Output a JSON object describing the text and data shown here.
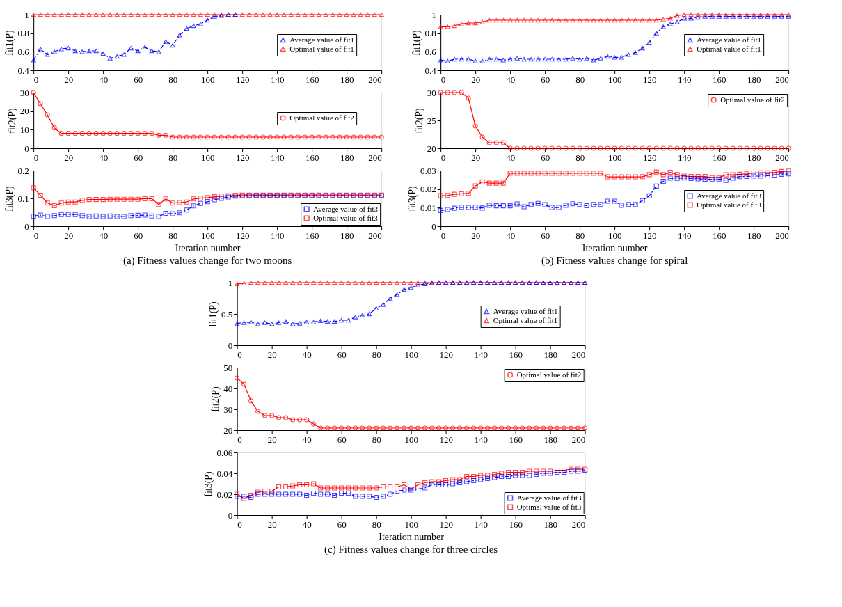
{
  "chart_data": [
    {
      "type": "line",
      "ylabel": "fit1(P)",
      "x": [
        0,
        4,
        8,
        12,
        16,
        20,
        24,
        28,
        32,
        36,
        40,
        44,
        48,
        52,
        56,
        60,
        64,
        68,
        72,
        76,
        80,
        84,
        88,
        92,
        96,
        100,
        104,
        108,
        112,
        116,
        120,
        124,
        128,
        132,
        136,
        140,
        144,
        148,
        152,
        156,
        160,
        164,
        168,
        172,
        176,
        180,
        184,
        188,
        192,
        196,
        200
      ],
      "xlim": [
        0,
        200
      ],
      "xticks": [
        0,
        20,
        40,
        60,
        80,
        100,
        120,
        140,
        160,
        180,
        200
      ],
      "ylim": [
        0.4,
        1
      ],
      "yticks": [
        0.4,
        0.6,
        0.8,
        1
      ],
      "legend": "right",
      "grid": false,
      "series": [
        {
          "name": "Average value of fit1",
          "color": "#0000ff",
          "marker": "triangle",
          "line_style": "dashed",
          "values": [
            0.51,
            0.63,
            0.57,
            0.6,
            0.63,
            0.64,
            0.61,
            0.6,
            0.61,
            0.61,
            0.58,
            0.53,
            0.55,
            0.57,
            0.64,
            0.61,
            0.65,
            0.61,
            0.6,
            0.71,
            0.67,
            0.78,
            0.85,
            0.88,
            0.9,
            0.94,
            0.98,
            0.99,
            1,
            1,
            null,
            null,
            null,
            null,
            null,
            null,
            null,
            null,
            null,
            null,
            null,
            null,
            null,
            null,
            null,
            null,
            null,
            null,
            null,
            null,
            null
          ]
        },
        {
          "name": "Optimal value of fit1",
          "color": "#ff0000",
          "marker": "triangle",
          "line_style": "solid",
          "values": [
            1,
            1,
            1,
            1,
            1,
            1,
            1,
            1,
            1,
            1,
            1,
            1,
            1,
            1,
            1,
            1,
            1,
            1,
            1,
            1,
            1,
            1,
            1,
            1,
            1,
            1,
            1,
            1,
            1,
            1,
            1,
            1,
            1,
            1,
            1,
            1,
            1,
            1,
            1,
            1,
            1,
            1,
            1,
            1,
            1,
            1,
            1,
            1,
            1,
            1,
            1
          ]
        }
      ]
    },
    {
      "type": "line",
      "ylabel": "fit2(P)",
      "x": [
        0,
        4,
        8,
        12,
        16,
        20,
        24,
        28,
        32,
        36,
        40,
        44,
        48,
        52,
        56,
        60,
        64,
        68,
        72,
        76,
        80,
        84,
        88,
        92,
        96,
        100,
        104,
        108,
        112,
        116,
        120,
        124,
        128,
        132,
        136,
        140,
        144,
        148,
        152,
        156,
        160,
        164,
        168,
        172,
        176,
        180,
        184,
        188,
        192,
        196,
        200
      ],
      "xlim": [
        0,
        200
      ],
      "xticks": [
        0,
        20,
        40,
        60,
        80,
        100,
        120,
        140,
        160,
        180,
        200
      ],
      "ylim": [
        0,
        30
      ],
      "yticks": [
        0,
        10,
        20,
        30
      ],
      "legend": "right",
      "grid": false,
      "series": [
        {
          "name": "Optimal value of fit2",
          "color": "#ff0000",
          "marker": "circle",
          "line_style": "solid",
          "values": [
            30,
            24,
            18,
            11,
            8,
            8,
            8,
            8,
            8,
            8,
            8,
            8,
            8,
            8,
            8,
            8,
            8,
            8,
            7,
            7,
            6,
            6,
            6,
            6,
            6,
            6,
            6,
            6,
            6,
            6,
            6,
            6,
            6,
            6,
            6,
            6,
            6,
            6,
            6,
            6,
            6,
            6,
            6,
            6,
            6,
            6,
            6,
            6,
            6,
            6,
            6
          ]
        }
      ]
    },
    {
      "type": "line",
      "ylabel": "fit3(P)",
      "xlabel": "Iteration number",
      "annotations": [
        "(a) Fitness values change for two moons"
      ],
      "x": [
        0,
        4,
        8,
        12,
        16,
        20,
        24,
        28,
        32,
        36,
        40,
        44,
        48,
        52,
        56,
        60,
        64,
        68,
        72,
        76,
        80,
        84,
        88,
        92,
        96,
        100,
        104,
        108,
        112,
        116,
        120,
        124,
        128,
        132,
        136,
        140,
        144,
        148,
        152,
        156,
        160,
        164,
        168,
        172,
        176,
        180,
        184,
        188,
        192,
        196,
        200
      ],
      "xlim": [
        0,
        200
      ],
      "xticks": [
        0,
        20,
        40,
        60,
        80,
        100,
        120,
        140,
        160,
        180,
        200
      ],
      "ylim": [
        0,
        0.2
      ],
      "yticks": [
        0,
        0.1,
        0.2
      ],
      "legend": "bottom right",
      "grid": false,
      "series": [
        {
          "name": "Average value of fit3",
          "color": "#0000ff",
          "marker": "square",
          "line_style": "dashed",
          "values": [
            0.036,
            0.04,
            0.035,
            0.038,
            0.042,
            0.042,
            0.042,
            0.038,
            0.035,
            0.037,
            0.035,
            0.037,
            0.035,
            0.035,
            0.038,
            0.039,
            0.04,
            0.037,
            0.035,
            0.046,
            0.045,
            0.048,
            0.058,
            0.073,
            0.082,
            0.088,
            0.095,
            0.1,
            0.105,
            0.108,
            0.109,
            0.11,
            0.11,
            0.11,
            0.11,
            0.11,
            0.11,
            0.11,
            0.11,
            0.11,
            0.11,
            0.11,
            0.11,
            0.11,
            0.11,
            0.11,
            0.11,
            0.11,
            0.11,
            0.11,
            0.11
          ]
        },
        {
          "name": "Optimal value of fit3",
          "color": "#ff0000",
          "marker": "square",
          "line_style": "solid",
          "values": [
            0.138,
            0.111,
            0.083,
            0.074,
            0.083,
            0.087,
            0.087,
            0.093,
            0.096,
            0.096,
            0.096,
            0.097,
            0.097,
            0.097,
            0.097,
            0.097,
            0.099,
            0.099,
            0.078,
            0.098,
            0.083,
            0.085,
            0.087,
            0.098,
            0.101,
            0.103,
            0.106,
            0.108,
            0.109,
            0.111,
            0.112,
            0.112,
            0.112,
            0.112,
            0.112,
            0.112,
            0.112,
            0.112,
            0.112,
            0.112,
            0.112,
            0.112,
            0.112,
            0.112,
            0.112,
            0.112,
            0.112,
            0.112,
            0.112,
            0.112,
            0.112
          ]
        }
      ]
    },
    {
      "type": "line",
      "ylabel": "fit1(P)",
      "x": [
        0,
        4,
        8,
        12,
        16,
        20,
        24,
        28,
        32,
        36,
        40,
        44,
        48,
        52,
        56,
        60,
        64,
        68,
        72,
        76,
        80,
        84,
        88,
        92,
        96,
        100,
        104,
        108,
        112,
        116,
        120,
        124,
        128,
        132,
        136,
        140,
        144,
        148,
        152,
        156,
        160,
        164,
        168,
        172,
        176,
        180,
        184,
        188,
        192,
        196,
        200
      ],
      "xlim": [
        0,
        200
      ],
      "xticks": [
        0,
        20,
        40,
        60,
        80,
        100,
        120,
        140,
        160,
        180,
        200
      ],
      "ylim": [
        0.4,
        1
      ],
      "yticks": [
        0.4,
        0.6,
        0.8,
        1
      ],
      "legend": "right",
      "grid": false,
      "series": [
        {
          "name": "Average value of fit1",
          "color": "#0000ff",
          "marker": "triangle",
          "line_style": "dashed",
          "values": [
            0.51,
            0.5,
            0.52,
            0.52,
            0.52,
            0.5,
            0.5,
            0.52,
            0.52,
            0.51,
            0.52,
            0.53,
            0.52,
            0.52,
            0.52,
            0.52,
            0.52,
            0.52,
            0.52,
            0.53,
            0.52,
            0.53,
            0.51,
            0.53,
            0.55,
            0.54,
            0.54,
            0.57,
            0.59,
            0.64,
            0.7,
            0.8,
            0.87,
            0.9,
            0.92,
            0.96,
            0.96,
            0.97,
            0.98,
            0.98,
            0.98,
            0.98,
            0.98,
            0.98,
            0.98,
            0.98,
            0.98,
            0.98,
            0.98,
            0.98,
            0.98
          ]
        },
        {
          "name": "Optimal value of fit1",
          "color": "#ff0000",
          "marker": "triangle",
          "line_style": "solid",
          "values": [
            0.87,
            0.87,
            0.88,
            0.9,
            0.91,
            0.91,
            0.92,
            0.94,
            0.94,
            0.94,
            0.94,
            0.94,
            0.94,
            0.94,
            0.94,
            0.94,
            0.94,
            0.94,
            0.94,
            0.94,
            0.94,
            0.94,
            0.94,
            0.94,
            0.94,
            0.94,
            0.94,
            0.94,
            0.94,
            0.94,
            0.94,
            0.94,
            0.95,
            0.96,
            0.99,
            1,
            1,
            1,
            1,
            1,
            1,
            1,
            1,
            1,
            1,
            1,
            1,
            1,
            1,
            1,
            1
          ]
        }
      ]
    },
    {
      "type": "line",
      "ylabel": "fit2(P)",
      "x": [
        0,
        4,
        8,
        12,
        16,
        20,
        24,
        28,
        32,
        36,
        40,
        44,
        48,
        52,
        56,
        60,
        64,
        68,
        72,
        76,
        80,
        84,
        88,
        92,
        96,
        100,
        104,
        108,
        112,
        116,
        120,
        124,
        128,
        132,
        136,
        140,
        144,
        148,
        152,
        156,
        160,
        164,
        168,
        172,
        176,
        180,
        184,
        188,
        192,
        196,
        200
      ],
      "xlim": [
        0,
        200
      ],
      "xticks": [
        0,
        20,
        40,
        60,
        80,
        100,
        120,
        140,
        160,
        180,
        200
      ],
      "ylim": [
        20,
        30
      ],
      "yticks": [
        20,
        25,
        30
      ],
      "legend": "top right",
      "grid": false,
      "series": [
        {
          "name": "Optimal value of fit2",
          "color": "#ff0000",
          "marker": "circle",
          "line_style": "solid",
          "values": [
            30,
            30,
            30,
            30,
            29,
            24,
            22,
            21,
            21,
            21,
            20,
            20,
            20,
            20,
            20,
            20,
            20,
            20,
            20,
            20,
            20,
            20,
            20,
            20,
            20,
            20,
            20,
            20,
            20,
            20,
            20,
            20,
            20,
            20,
            20,
            20,
            20,
            20,
            20,
            20,
            20,
            20,
            20,
            20,
            20,
            20,
            20,
            20,
            20,
            20,
            20
          ]
        }
      ]
    },
    {
      "type": "line",
      "ylabel": "fit3(P)",
      "xlabel": "Iteration number",
      "annotations": [
        "(b) Fitness values change for spiral"
      ],
      "x": [
        0,
        4,
        8,
        12,
        16,
        20,
        24,
        28,
        32,
        36,
        40,
        44,
        48,
        52,
        56,
        60,
        64,
        68,
        72,
        76,
        80,
        84,
        88,
        92,
        96,
        100,
        104,
        108,
        112,
        116,
        120,
        124,
        128,
        132,
        136,
        140,
        144,
        148,
        152,
        156,
        160,
        164,
        168,
        172,
        176,
        180,
        184,
        188,
        192,
        196,
        200
      ],
      "xlim": [
        0,
        200
      ],
      "xticks": [
        0,
        20,
        40,
        60,
        80,
        100,
        120,
        140,
        160,
        180,
        200
      ],
      "ylim": [
        0,
        0.03
      ],
      "yticks": [
        0,
        0.01,
        0.02,
        0.03
      ],
      "legend": "right",
      "grid": false,
      "series": [
        {
          "name": "Average value of fit3",
          "color": "#0000ff",
          "marker": "square",
          "line_style": "dashed",
          "values": [
            0.0085,
            0.009,
            0.0097,
            0.0102,
            0.0101,
            0.0102,
            0.0098,
            0.0113,
            0.011,
            0.011,
            0.011,
            0.012,
            0.0105,
            0.0117,
            0.0123,
            0.0116,
            0.0101,
            0.0101,
            0.0113,
            0.0121,
            0.0117,
            0.0111,
            0.0117,
            0.0117,
            0.0135,
            0.0135,
            0.0113,
            0.0117,
            0.0117,
            0.0138,
            0.0164,
            0.0216,
            0.0242,
            0.0259,
            0.0258,
            0.026,
            0.0257,
            0.0255,
            0.0253,
            0.0252,
            0.0254,
            0.0247,
            0.0259,
            0.0267,
            0.0268,
            0.027,
            0.027,
            0.0272,
            0.0275,
            0.028,
            0.0282
          ]
        },
        {
          "name": "Optimal value of fit3",
          "color": "#ff0000",
          "marker": "square",
          "line_style": "solid",
          "values": [
            0.0165,
            0.0166,
            0.0172,
            0.0175,
            0.0177,
            0.0217,
            0.0239,
            0.0232,
            0.0232,
            0.0232,
            0.0285,
            0.0285,
            0.0285,
            0.0285,
            0.0285,
            0.0285,
            0.0285,
            0.0285,
            0.0285,
            0.0285,
            0.0285,
            0.0285,
            0.0285,
            0.0285,
            0.0266,
            0.0266,
            0.0266,
            0.0266,
            0.0266,
            0.0267,
            0.0278,
            0.0292,
            0.0278,
            0.029,
            0.0278,
            0.027,
            0.0268,
            0.0268,
            0.0268,
            0.0262,
            0.0262,
            0.0277,
            0.0277,
            0.028,
            0.0282,
            0.0287,
            0.0288,
            0.0288,
            0.029,
            0.0295,
            0.0297
          ]
        }
      ]
    },
    {
      "type": "line",
      "ylabel": "fit1(P)",
      "x": [
        0,
        4,
        8,
        12,
        16,
        20,
        24,
        28,
        32,
        36,
        40,
        44,
        48,
        52,
        56,
        60,
        64,
        68,
        72,
        76,
        80,
        84,
        88,
        92,
        96,
        100,
        104,
        108,
        112,
        116,
        120,
        124,
        128,
        132,
        136,
        140,
        144,
        148,
        152,
        156,
        160,
        164,
        168,
        172,
        176,
        180,
        184,
        188,
        192,
        196,
        200
      ],
      "xlim": [
        0,
        200
      ],
      "xticks": [
        0,
        20,
        40,
        60,
        80,
        100,
        120,
        140,
        160,
        180,
        200
      ],
      "ylim": [
        0,
        1
      ],
      "yticks": [
        0,
        0.5,
        1
      ],
      "legend": "right",
      "grid": false,
      "series": [
        {
          "name": "Average value of fit1",
          "color": "#0000ff",
          "marker": "triangle",
          "line_style": "dashed",
          "values": [
            0.35,
            0.36,
            0.37,
            0.34,
            0.36,
            0.34,
            0.36,
            0.38,
            0.34,
            0.35,
            0.37,
            0.37,
            0.39,
            0.38,
            0.38,
            0.4,
            0.4,
            0.45,
            0.48,
            0.5,
            0.59,
            0.65,
            0.75,
            0.81,
            0.89,
            0.92,
            0.96,
            0.98,
            0.99,
            1,
            1,
            1,
            1,
            1,
            1,
            1,
            1,
            1,
            1,
            1,
            1,
            1,
            1,
            1,
            1,
            1,
            1,
            1,
            1,
            1,
            1
          ]
        },
        {
          "name": "Optimal value of fit1",
          "color": "#ff0000",
          "marker": "triangle",
          "line_style": "solid",
          "values": [
            0.98,
            0.99,
            1,
            1,
            1,
            1,
            1,
            1,
            1,
            1,
            1,
            1,
            1,
            1,
            1,
            1,
            1,
            1,
            1,
            1,
            1,
            1,
            1,
            1,
            1,
            1,
            1,
            1,
            1,
            1,
            1,
            1,
            1,
            1,
            1,
            1,
            1,
            1,
            1,
            1,
            1,
            1,
            1,
            1,
            1,
            1,
            1,
            1,
            1,
            1,
            1
          ]
        }
      ]
    },
    {
      "type": "line",
      "ylabel": "fit2(P)",
      "x": [
        0,
        4,
        8,
        12,
        16,
        20,
        24,
        28,
        32,
        36,
        40,
        44,
        48,
        52,
        56,
        60,
        64,
        68,
        72,
        76,
        80,
        84,
        88,
        92,
        96,
        100,
        104,
        108,
        112,
        116,
        120,
        124,
        128,
        132,
        136,
        140,
        144,
        148,
        152,
        156,
        160,
        164,
        168,
        172,
        176,
        180,
        184,
        188,
        192,
        196,
        200
      ],
      "xlim": [
        0,
        200
      ],
      "xticks": [
        0,
        20,
        40,
        60,
        80,
        100,
        120,
        140,
        160,
        180,
        200
      ],
      "ylim": [
        20,
        50
      ],
      "yticks": [
        20,
        30,
        40,
        50
      ],
      "legend": "top right",
      "grid": false,
      "series": [
        {
          "name": "Optimal value of fit2",
          "color": "#ff0000",
          "marker": "circle",
          "line_style": "solid",
          "values": [
            45,
            42,
            34,
            29,
            27,
            27,
            26,
            26,
            25,
            25,
            25,
            23,
            21,
            21,
            21,
            21,
            21,
            21,
            21,
            21,
            21,
            21,
            21,
            21,
            21,
            21,
            21,
            21,
            21,
            21,
            21,
            21,
            21,
            21,
            21,
            21,
            21,
            21,
            21,
            21,
            21,
            21,
            21,
            21,
            21,
            21,
            21,
            21,
            21,
            21,
            21
          ]
        }
      ]
    },
    {
      "type": "line",
      "ylabel": "fit3(P)",
      "xlabel": "Iteration number",
      "annotations": [
        "(c) Fitness values change for three circles"
      ],
      "x": [
        0,
        4,
        8,
        12,
        16,
        20,
        24,
        28,
        32,
        36,
        40,
        44,
        48,
        52,
        56,
        60,
        64,
        68,
        72,
        76,
        80,
        84,
        88,
        92,
        96,
        100,
        104,
        108,
        112,
        116,
        120,
        124,
        128,
        132,
        136,
        140,
        144,
        148,
        152,
        156,
        160,
        164,
        168,
        172,
        176,
        180,
        184,
        188,
        192,
        196,
        200
      ],
      "xlim": [
        0,
        200
      ],
      "xticks": [
        0,
        20,
        40,
        60,
        80,
        100,
        120,
        140,
        160,
        180,
        200
      ],
      "ylim": [
        0,
        0.06
      ],
      "yticks": [
        0,
        0.02,
        0.04,
        0.06
      ],
      "legend": "bottom right",
      "grid": false,
      "series": [
        {
          "name": "Average value of fit3",
          "color": "#0000ff",
          "marker": "square",
          "line_style": "dashed",
          "values": [
            0.018,
            0.018,
            0.017,
            0.02,
            0.02,
            0.02,
            0.02,
            0.02,
            0.02,
            0.02,
            0.019,
            0.021,
            0.02,
            0.02,
            0.019,
            0.021,
            0.021,
            0.018,
            0.018,
            0.018,
            0.017,
            0.018,
            0.02,
            0.023,
            0.024,
            0.024,
            0.025,
            0.026,
            0.029,
            0.029,
            0.029,
            0.03,
            0.031,
            0.032,
            0.033,
            0.034,
            0.035,
            0.036,
            0.037,
            0.037,
            0.038,
            0.038,
            0.038,
            0.039,
            0.04,
            0.04,
            0.041,
            0.041,
            0.042,
            0.042,
            0.043
          ]
        },
        {
          "name": "Optimal value of fit3",
          "color": "#ff0000",
          "marker": "square",
          "line_style": "solid",
          "values": [
            0.02,
            0.016,
            0.019,
            0.022,
            0.023,
            0.023,
            0.027,
            0.027,
            0.028,
            0.029,
            0.029,
            0.03,
            0.026,
            0.026,
            0.026,
            0.026,
            0.026,
            0.026,
            0.026,
            0.026,
            0.026,
            0.027,
            0.027,
            0.027,
            0.029,
            0.025,
            0.029,
            0.031,
            0.032,
            0.032,
            0.033,
            0.034,
            0.034,
            0.037,
            0.037,
            0.038,
            0.038,
            0.039,
            0.04,
            0.041,
            0.041,
            0.041,
            0.042,
            0.042,
            0.042,
            0.042,
            0.043,
            0.043,
            0.044,
            0.044,
            0.044
          ]
        }
      ]
    }
  ]
}
